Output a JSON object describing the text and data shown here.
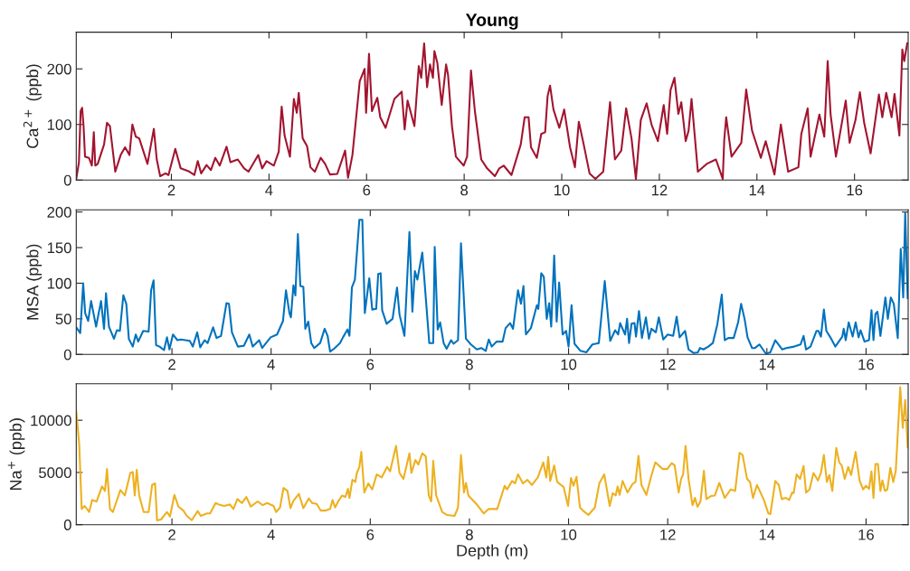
{
  "chart_data": [
    {
      "type": "line",
      "title": "Young",
      "ylabel": "Ca$^{2+}$ (ppb)",
      "xlim": [
        0.05,
        17.1
      ],
      "ylim": [
        0,
        266
      ],
      "xticks": [
        2,
        4,
        6,
        8,
        10,
        12,
        14,
        16
      ],
      "yticks": [
        0,
        100,
        200
      ],
      "grid": false,
      "legend": false,
      "series": [
        {
          "color": "#a2142f",
          "x": [
            0.05,
            0.105,
            0.14,
            0.17,
            0.2,
            0.23,
            0.31,
            0.37,
            0.41,
            0.44,
            0.49,
            0.62,
            0.68,
            0.74,
            0.85,
            0.96,
            1.05,
            1.14,
            1.2,
            1.27,
            1.34,
            1.51,
            1.64,
            1.7,
            1.77,
            1.88,
            1.94,
            2.08,
            2.19,
            2.35,
            2.47,
            2.54,
            2.61,
            2.72,
            2.81,
            2.9,
            2.99,
            3.13,
            3.21,
            3.36,
            3.49,
            3.58,
            3.78,
            3.86,
            3.95,
            4.1,
            4.2,
            4.26,
            4.32,
            4.43,
            4.51,
            4.57,
            4.61,
            4.69,
            4.78,
            4.85,
            4.94,
            5.06,
            5.15,
            5.25,
            5.4,
            5.56,
            5.62,
            5.71,
            5.86,
            5.96,
            5.99,
            6.05,
            6.11,
            6.22,
            6.28,
            6.39,
            6.57,
            6.72,
            6.78,
            6.84,
            6.98,
            7.07,
            7.12,
            7.18,
            7.24,
            7.3,
            7.36,
            7.39,
            7.45,
            7.54,
            7.63,
            7.67,
            7.75,
            7.83,
            7.99,
            8.06,
            8.14,
            8.22,
            8.35,
            8.47,
            8.63,
            8.72,
            8.81,
            8.97,
            9.16,
            9.24,
            9.32,
            9.37,
            9.49,
            9.58,
            9.66,
            9.71,
            9.76,
            9.83,
            9.95,
            10.05,
            10.17,
            10.27,
            10.35,
            10.45,
            10.57,
            10.69,
            10.85,
            10.99,
            11.09,
            11.22,
            11.32,
            11.43,
            11.52,
            11.62,
            11.74,
            11.84,
            11.97,
            12.09,
            12.16,
            12.23,
            12.31,
            12.39,
            12.45,
            12.54,
            12.6,
            12.66,
            12.79,
            12.97,
            13.16,
            13.3,
            13.33,
            13.37,
            13.48,
            13.68,
            13.78,
            13.9,
            14.08,
            14.18,
            14.36,
            14.49,
            14.64,
            14.85,
            14.91,
            15.04,
            15.1,
            15.28,
            15.38,
            15.45,
            15.51,
            15.62,
            15.82,
            15.9,
            16.02,
            16.11,
            16.2,
            16.33,
            16.5,
            16.57,
            16.65,
            16.76,
            16.82,
            16.92,
            16.98,
            17.02,
            17.08
          ],
          "values": [
            2,
            32,
            124,
            130,
            97,
            42,
            40,
            26,
            86,
            26,
            29,
            64,
            103,
            97,
            15,
            45,
            59,
            45,
            100,
            78,
            75,
            29,
            92,
            37,
            7,
            12,
            9,
            56,
            21,
            16,
            9,
            34,
            12,
            27,
            18,
            40,
            26,
            60,
            32,
            37,
            21,
            15,
            45,
            21,
            34,
            26,
            51,
            132,
            80,
            42,
            146,
            121,
            157,
            75,
            61,
            23,
            15,
            40,
            29,
            10,
            11,
            53,
            4,
            45,
            178,
            200,
            121,
            227,
            124,
            148,
            113,
            94,
            146,
            159,
            91,
            143,
            97,
            205,
            184,
            246,
            167,
            208,
            184,
            232,
            211,
            135,
            208,
            189,
            97,
            42,
            26,
            42,
            197,
            124,
            37,
            21,
            7,
            21,
            26,
            9,
            64,
            113,
            113,
            59,
            40,
            83,
            86,
            151,
            170,
            127,
            94,
            127,
            59,
            23,
            105,
            64,
            12,
            2,
            15,
            140,
            37,
            53,
            129,
            75,
            2,
            108,
            138,
            100,
            70,
            135,
            83,
            162,
            184,
            119,
            140,
            70,
            89,
            146,
            15,
            29,
            37,
            2,
            72,
            113,
            42,
            67,
            163,
            89,
            40,
            70,
            10,
            100,
            15,
            23,
            83,
            129,
            42,
            118,
            78,
            214,
            118,
            42,
            143,
            67,
            108,
            158,
            102,
            48,
            154,
            113,
            157,
            113,
            155,
            80,
            235,
            214,
            246
          ]
        }
      ]
    },
    {
      "type": "line",
      "ylabel": "MSA (ppb)",
      "xlim": [
        0.07,
        16.85
      ],
      "ylim": [
        0,
        203
      ],
      "xticks": [
        2,
        4,
        6,
        8,
        10,
        12,
        14,
        16
      ],
      "yticks": [
        0,
        50,
        100,
        150,
        200
      ],
      "grid": false,
      "legend": false,
      "series": [
        {
          "color": "#0072bd",
          "x": [
            0.07,
            0.15,
            0.21,
            0.25,
            0.31,
            0.37,
            0.47,
            0.57,
            0.63,
            0.67,
            0.73,
            0.83,
            0.89,
            0.95,
            1.02,
            1.08,
            1.13,
            1.21,
            1.27,
            1.32,
            1.42,
            1.53,
            1.58,
            1.63,
            1.68,
            1.75,
            1.84,
            1.9,
            1.95,
            2.02,
            2.11,
            2.18,
            2.36,
            2.42,
            2.51,
            2.57,
            2.66,
            2.72,
            2.83,
            2.9,
            2.99,
            3.1,
            3.15,
            3.21,
            3.33,
            3.45,
            3.56,
            3.63,
            3.76,
            3.82,
            3.99,
            4.12,
            4.24,
            4.3,
            4.37,
            4.4,
            4.45,
            4.49,
            4.54,
            4.59,
            4.65,
            4.69,
            4.75,
            4.81,
            4.87,
            4.99,
            5.08,
            5.14,
            5.19,
            5.27,
            5.39,
            5.45,
            5.54,
            5.58,
            5.63,
            5.69,
            5.78,
            5.84,
            5.89,
            5.98,
            6.04,
            6.12,
            6.16,
            6.21,
            6.24,
            6.33,
            6.45,
            6.54,
            6.59,
            6.69,
            6.79,
            6.85,
            6.9,
            6.95,
            7.05,
            7.19,
            7.27,
            7.3,
            7.36,
            7.41,
            7.48,
            7.54,
            7.63,
            7.68,
            7.77,
            7.83,
            7.93,
            8.03,
            8.15,
            8.24,
            8.33,
            8.39,
            8.45,
            8.55,
            8.67,
            8.73,
            8.82,
            8.88,
            8.98,
            9.04,
            9.09,
            9.14,
            9.24,
            9.36,
            9.39,
            9.45,
            9.5,
            9.56,
            9.61,
            9.65,
            9.71,
            9.76,
            9.81,
            9.88,
            9.95,
            10.0,
            10.06,
            10.12,
            10.24,
            10.36,
            10.48,
            10.61,
            10.73,
            10.84,
            10.94,
            11.0,
            11.04,
            11.14,
            11.18,
            11.22,
            11.27,
            11.33,
            11.36,
            11.42,
            11.48,
            11.56,
            11.62,
            11.67,
            11.76,
            11.82,
            11.91,
            12.0,
            12.11,
            12.18,
            12.24,
            12.35,
            12.42,
            12.52,
            12.61,
            12.65,
            12.72,
            12.82,
            12.91,
            13.0,
            13.09,
            13.15,
            13.22,
            13.33,
            13.42,
            13.48,
            13.55,
            13.61,
            13.7,
            13.76,
            13.85,
            13.98,
            14.07,
            14.17,
            14.31,
            14.39,
            14.55,
            14.68,
            14.74,
            14.79,
            14.88,
            15.0,
            15.04,
            15.09,
            15.15,
            15.2,
            15.28,
            15.38,
            15.52,
            15.55,
            15.59,
            15.65,
            15.73,
            15.79,
            15.85,
            15.89,
            15.97,
            16.06,
            16.11,
            16.15,
            16.19,
            16.23,
            16.29,
            16.39,
            16.44,
            16.5,
            16.56,
            16.64,
            16.7,
            16.75,
            16.79,
            16.84
          ],
          "values": [
            38,
            30,
            100,
            58,
            47,
            75,
            39,
            75,
            36,
            86,
            39,
            22,
            34,
            33,
            83,
            71,
            22,
            11,
            28,
            18,
            33,
            32,
            90,
            104,
            13,
            11,
            6,
            24,
            7,
            28,
            20,
            21,
            19,
            11,
            31,
            10,
            20,
            16,
            38,
            23,
            26,
            72,
            71,
            31,
            11,
            12,
            28,
            11,
            20,
            9,
            24,
            28,
            47,
            90,
            58,
            52,
            97,
            83,
            169,
            96,
            95,
            36,
            46,
            16,
            9,
            16,
            36,
            26,
            4,
            8,
            16,
            24,
            35,
            26,
            94,
            105,
            189,
            189,
            58,
            107,
            63,
            64,
            113,
            114,
            62,
            43,
            50,
            94,
            56,
            26,
            172,
            60,
            117,
            105,
            143,
            16,
            16,
            151,
            35,
            45,
            16,
            8,
            20,
            15,
            20,
            156,
            22,
            14,
            7,
            9,
            5,
            21,
            11,
            18,
            18,
            37,
            44,
            36,
            90,
            71,
            96,
            28,
            37,
            69,
            64,
            114,
            109,
            50,
            72,
            39,
            139,
            46,
            101,
            28,
            33,
            11,
            69,
            15,
            5,
            3,
            14,
            16,
            103,
            19,
            34,
            28,
            44,
            28,
            50,
            16,
            43,
            44,
            25,
            61,
            23,
            52,
            22,
            36,
            31,
            52,
            21,
            28,
            26,
            53,
            24,
            33,
            7,
            2,
            3,
            9,
            7,
            11,
            16,
            42,
            84,
            20,
            23,
            23,
            45,
            71,
            50,
            24,
            9,
            9,
            14,
            1,
            3,
            20,
            7,
            9,
            11,
            14,
            26,
            7,
            11,
            33,
            33,
            25,
            63,
            33,
            24,
            11,
            25,
            36,
            20,
            45,
            25,
            45,
            24,
            34,
            18,
            20,
            62,
            20,
            57,
            60,
            26,
            80,
            50,
            80,
            71,
            23,
            148,
            80,
            199,
            79
          ]
        }
      ]
    },
    {
      "type": "line",
      "ylabel": "Na$^{+}$ (ppb)",
      "xlabel": "Depth (m)",
      "xlim": [
        0.07,
        16.85
      ],
      "ylim": [
        0,
        13500
      ],
      "xticks": [
        2,
        4,
        6,
        8,
        10,
        12,
        14,
        16
      ],
      "yticks": [
        0,
        5000,
        10000
      ],
      "grid": false,
      "legend": false,
      "series": [
        {
          "color": "#edb120",
          "x": [
            0.07,
            0.13,
            0.18,
            0.24,
            0.33,
            0.39,
            0.48,
            0.59,
            0.65,
            0.69,
            0.75,
            0.81,
            0.87,
            0.96,
            1.05,
            1.16,
            1.21,
            1.25,
            1.29,
            1.34,
            1.43,
            1.53,
            1.6,
            1.66,
            1.7,
            1.78,
            1.9,
            1.96,
            2.05,
            2.13,
            2.23,
            2.3,
            2.4,
            2.52,
            2.58,
            2.71,
            2.77,
            2.88,
            2.95,
            3.05,
            3.17,
            3.24,
            3.32,
            3.41,
            3.5,
            3.59,
            3.73,
            3.83,
            3.92,
            4.05,
            4.1,
            4.18,
            4.25,
            4.33,
            4.39,
            4.45,
            4.56,
            4.65,
            4.76,
            4.83,
            4.92,
            5.0,
            5.1,
            5.19,
            5.24,
            5.29,
            5.36,
            5.43,
            5.5,
            5.55,
            5.58,
            5.64,
            5.7,
            5.73,
            5.78,
            5.82,
            5.88,
            5.96,
            6.04,
            6.13,
            6.23,
            6.34,
            6.4,
            6.52,
            6.59,
            6.67,
            6.79,
            6.83,
            6.91,
            6.97,
            7.05,
            7.12,
            7.18,
            7.23,
            7.27,
            7.33,
            7.45,
            7.55,
            7.7,
            7.77,
            7.83,
            7.89,
            7.93,
            7.98,
            8.16,
            8.29,
            8.39,
            8.56,
            8.62,
            8.71,
            8.76,
            8.86,
            8.92,
            8.98,
            9.08,
            9.17,
            9.26,
            9.38,
            9.49,
            9.55,
            9.59,
            9.63,
            9.71,
            9.77,
            9.9,
            9.99,
            10.05,
            10.1,
            10.16,
            10.23,
            10.29,
            10.4,
            10.53,
            10.62,
            10.72,
            10.83,
            10.89,
            10.95,
            10.99,
            11.03,
            11.09,
            11.19,
            11.29,
            11.35,
            11.41,
            11.47,
            11.57,
            11.66,
            11.75,
            11.9,
            11.99,
            12.08,
            12.14,
            12.22,
            12.27,
            12.31,
            12.36,
            12.42,
            12.5,
            12.55,
            12.6,
            12.66,
            12.73,
            12.78,
            12.87,
            12.95,
            13.04,
            13.15,
            13.27,
            13.36,
            13.45,
            13.51,
            13.6,
            13.66,
            13.72,
            13.8,
            13.94,
            14.03,
            14.07,
            14.17,
            14.24,
            14.3,
            14.38,
            14.45,
            14.51,
            14.54,
            14.6,
            14.67,
            14.74,
            14.79,
            14.86,
            14.94,
            15.03,
            15.09,
            15.15,
            15.21,
            15.26,
            15.32,
            15.4,
            15.46,
            15.51,
            15.57,
            15.64,
            15.7,
            15.79,
            15.87,
            15.94,
            16.0,
            16.06,
            16.11,
            16.15,
            16.19,
            16.24,
            16.29,
            16.33,
            16.38,
            16.43,
            16.49,
            16.55,
            16.6,
            16.69,
            16.74,
            16.79,
            16.84
          ],
          "values": [
            10860,
            7690,
            1500,
            1790,
            1210,
            2360,
            2220,
            3660,
            3230,
            5330,
            1500,
            1210,
            2070,
            3310,
            2790,
            4950,
            5040,
            2790,
            5240,
            2790,
            1210,
            1210,
            3800,
            3950,
            400,
            490,
            1210,
            780,
            2850,
            1730,
            1350,
            840,
            430,
            1300,
            840,
            1070,
            1070,
            2070,
            1930,
            1790,
            1930,
            1500,
            2450,
            2070,
            2650,
            1730,
            2220,
            1870,
            2070,
            1790,
            1210,
            1640,
            3510,
            3230,
            1580,
            2280,
            2940,
            1580,
            2510,
            2070,
            1990,
            1350,
            1350,
            1500,
            2360,
            1640,
            2280,
            2790,
            2650,
            3430,
            2560,
            4290,
            4090,
            4950,
            5530,
            6970,
            3080,
            3950,
            3370,
            4810,
            4520,
            5530,
            5100,
            7550,
            4950,
            4380,
            6830,
            4950,
            6190,
            5760,
            6830,
            6540,
            2790,
            2220,
            6110,
            2790,
            1210,
            920,
            840,
            1640,
            6680,
            3080,
            4000,
            2790,
            1870,
            1070,
            1500,
            1500,
            2360,
            3720,
            3370,
            4180,
            3950,
            4810,
            3950,
            4290,
            3800,
            4520,
            5960,
            4520,
            6480,
            4180,
            5670,
            4090,
            3600,
            1790,
            4460,
            3720,
            4580,
            1640,
            1350,
            920,
            1640,
            3950,
            4810,
            1790,
            3020,
            2790,
            3660,
            2850,
            4180,
            3080,
            3890,
            4090,
            6600,
            3800,
            2850,
            4520,
            5960,
            5330,
            5330,
            5900,
            5670,
            3080,
            4380,
            4810,
            7550,
            4380,
            1870,
            2560,
            1700,
            2220,
            5160,
            2450,
            2740,
            2790,
            4000,
            2560,
            3370,
            3230,
            6880,
            6680,
            4380,
            4090,
            2560,
            3800,
            2360,
            1070,
            1010,
            4180,
            3800,
            2450,
            2560,
            2360,
            3080,
            3020,
            4810,
            4380,
            5620,
            3080,
            3370,
            4950,
            4230,
            4950,
            6680,
            4090,
            4750,
            3230,
            7350,
            5960,
            5670,
            4380,
            5530,
            4750,
            6970,
            4230,
            3370,
            3720,
            3430,
            5100,
            2560,
            5820,
            5820,
            3230,
            4230,
            3230,
            3370,
            5440,
            4090,
            5160,
            13160,
            9270,
            11950,
            7400
          ]
        }
      ]
    }
  ]
}
